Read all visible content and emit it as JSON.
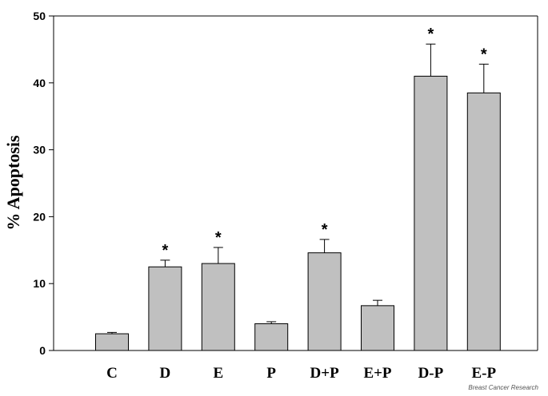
{
  "chart_data": {
    "type": "bar",
    "ylabel": "% Apoptosis",
    "xlabel": "",
    "ylim": [
      0,
      50
    ],
    "yticks": [
      0,
      10,
      20,
      30,
      40,
      50
    ],
    "grid": false,
    "categories": [
      "C",
      "D",
      "E",
      "P",
      "D+P",
      "E+P",
      "D-P",
      "E-P"
    ],
    "values": [
      2.5,
      12.5,
      13.0,
      4.0,
      14.6,
      6.7,
      41.0,
      38.5
    ],
    "error_upper": [
      0.2,
      1.0,
      2.4,
      0.3,
      2.0,
      0.8,
      4.8,
      4.3
    ],
    "significance": [
      "",
      "*",
      "*",
      "",
      "*",
      "",
      "*",
      "*"
    ],
    "bar_color": "#c0c0c0"
  },
  "credit": "Breast Cancer Research"
}
